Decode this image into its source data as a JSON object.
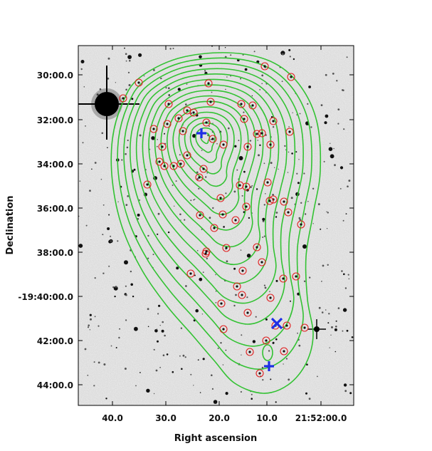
{
  "image_description_labels": {
    "x_axis_title": "Right ascension",
    "y_axis_title": "Declination",
    "x_ticks": [
      "40.0",
      "30.0",
      "20.0",
      "10.0",
      "21:52:00.0"
    ],
    "y_ticks": [
      "30:00.0",
      "32:00.0",
      "34:00.0",
      "36:00.0",
      "38:00.0",
      "-19:40:00.0",
      "42:00.0",
      "44:00.0"
    ]
  },
  "colors": {
    "contour": "#33c233",
    "circle": "#e01e1e",
    "marker": "#1e2ee6",
    "sky_background": "#d8d8d8"
  },
  "markers": [
    "blue-cross-1",
    "blue-cross-2",
    "blue-cross-3"
  ]
}
